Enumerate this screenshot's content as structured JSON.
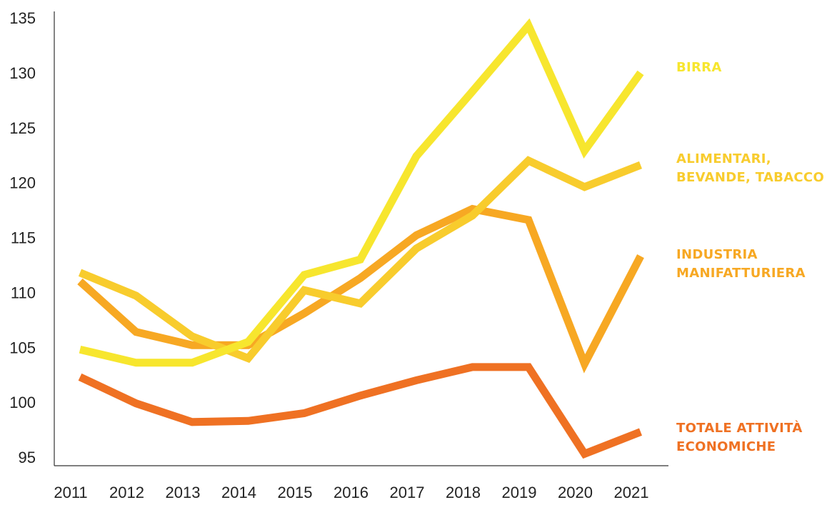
{
  "chart_data": {
    "type": "line",
    "title": "",
    "xlabel": "",
    "ylabel": "",
    "x": [
      "2011",
      "2012",
      "2013",
      "2014",
      "2015",
      "2016",
      "2017",
      "2018",
      "2019",
      "2020",
      "2021"
    ],
    "ylim": [
      95,
      135
    ],
    "yticks": [
      "95",
      "100",
      "105",
      "110",
      "115",
      "120",
      "125",
      "130",
      "135"
    ],
    "grid": false,
    "legend": "right, inline labels at series end",
    "series": [
      {
        "name": "BIRRA",
        "label_lines": [
          "BIRRA"
        ],
        "color": "#f7e62e",
        "values": [
          104.8,
          103.6,
          103.6,
          105.5,
          111.6,
          113.0,
          122.4,
          128.3,
          134.3,
          122.9,
          130.0
        ]
      },
      {
        "name": "ALIMENTARI, BEVANDE, TABACCO",
        "label_lines": [
          "ALIMENTARI,",
          "BEVANDE, TABACCO"
        ],
        "color": "#f8cc2d",
        "values": [
          111.8,
          109.7,
          106.0,
          104.0,
          110.2,
          109.0,
          114.0,
          117.0,
          122.0,
          119.6,
          121.6
        ]
      },
      {
        "name": "INDUSTRIA MANIFATTURIERA",
        "label_lines": [
          "INDUSTRIA",
          "MANIFATTURIERA"
        ],
        "color": "#f7a823",
        "values": [
          111.0,
          106.4,
          105.2,
          105.2,
          108.1,
          111.3,
          115.2,
          117.6,
          116.6,
          103.5,
          113.3
        ]
      },
      {
        "name": "TOTALE ATTIVITÀ ECONOMICHE",
        "label_lines": [
          "TOTALE ATTIVITÀ",
          "ECONOMICHE"
        ],
        "color": "#ef7123",
        "values": [
          102.3,
          99.9,
          98.2,
          98.3,
          99.0,
          100.6,
          102.0,
          103.2,
          103.2,
          95.3,
          97.3
        ]
      }
    ]
  }
}
